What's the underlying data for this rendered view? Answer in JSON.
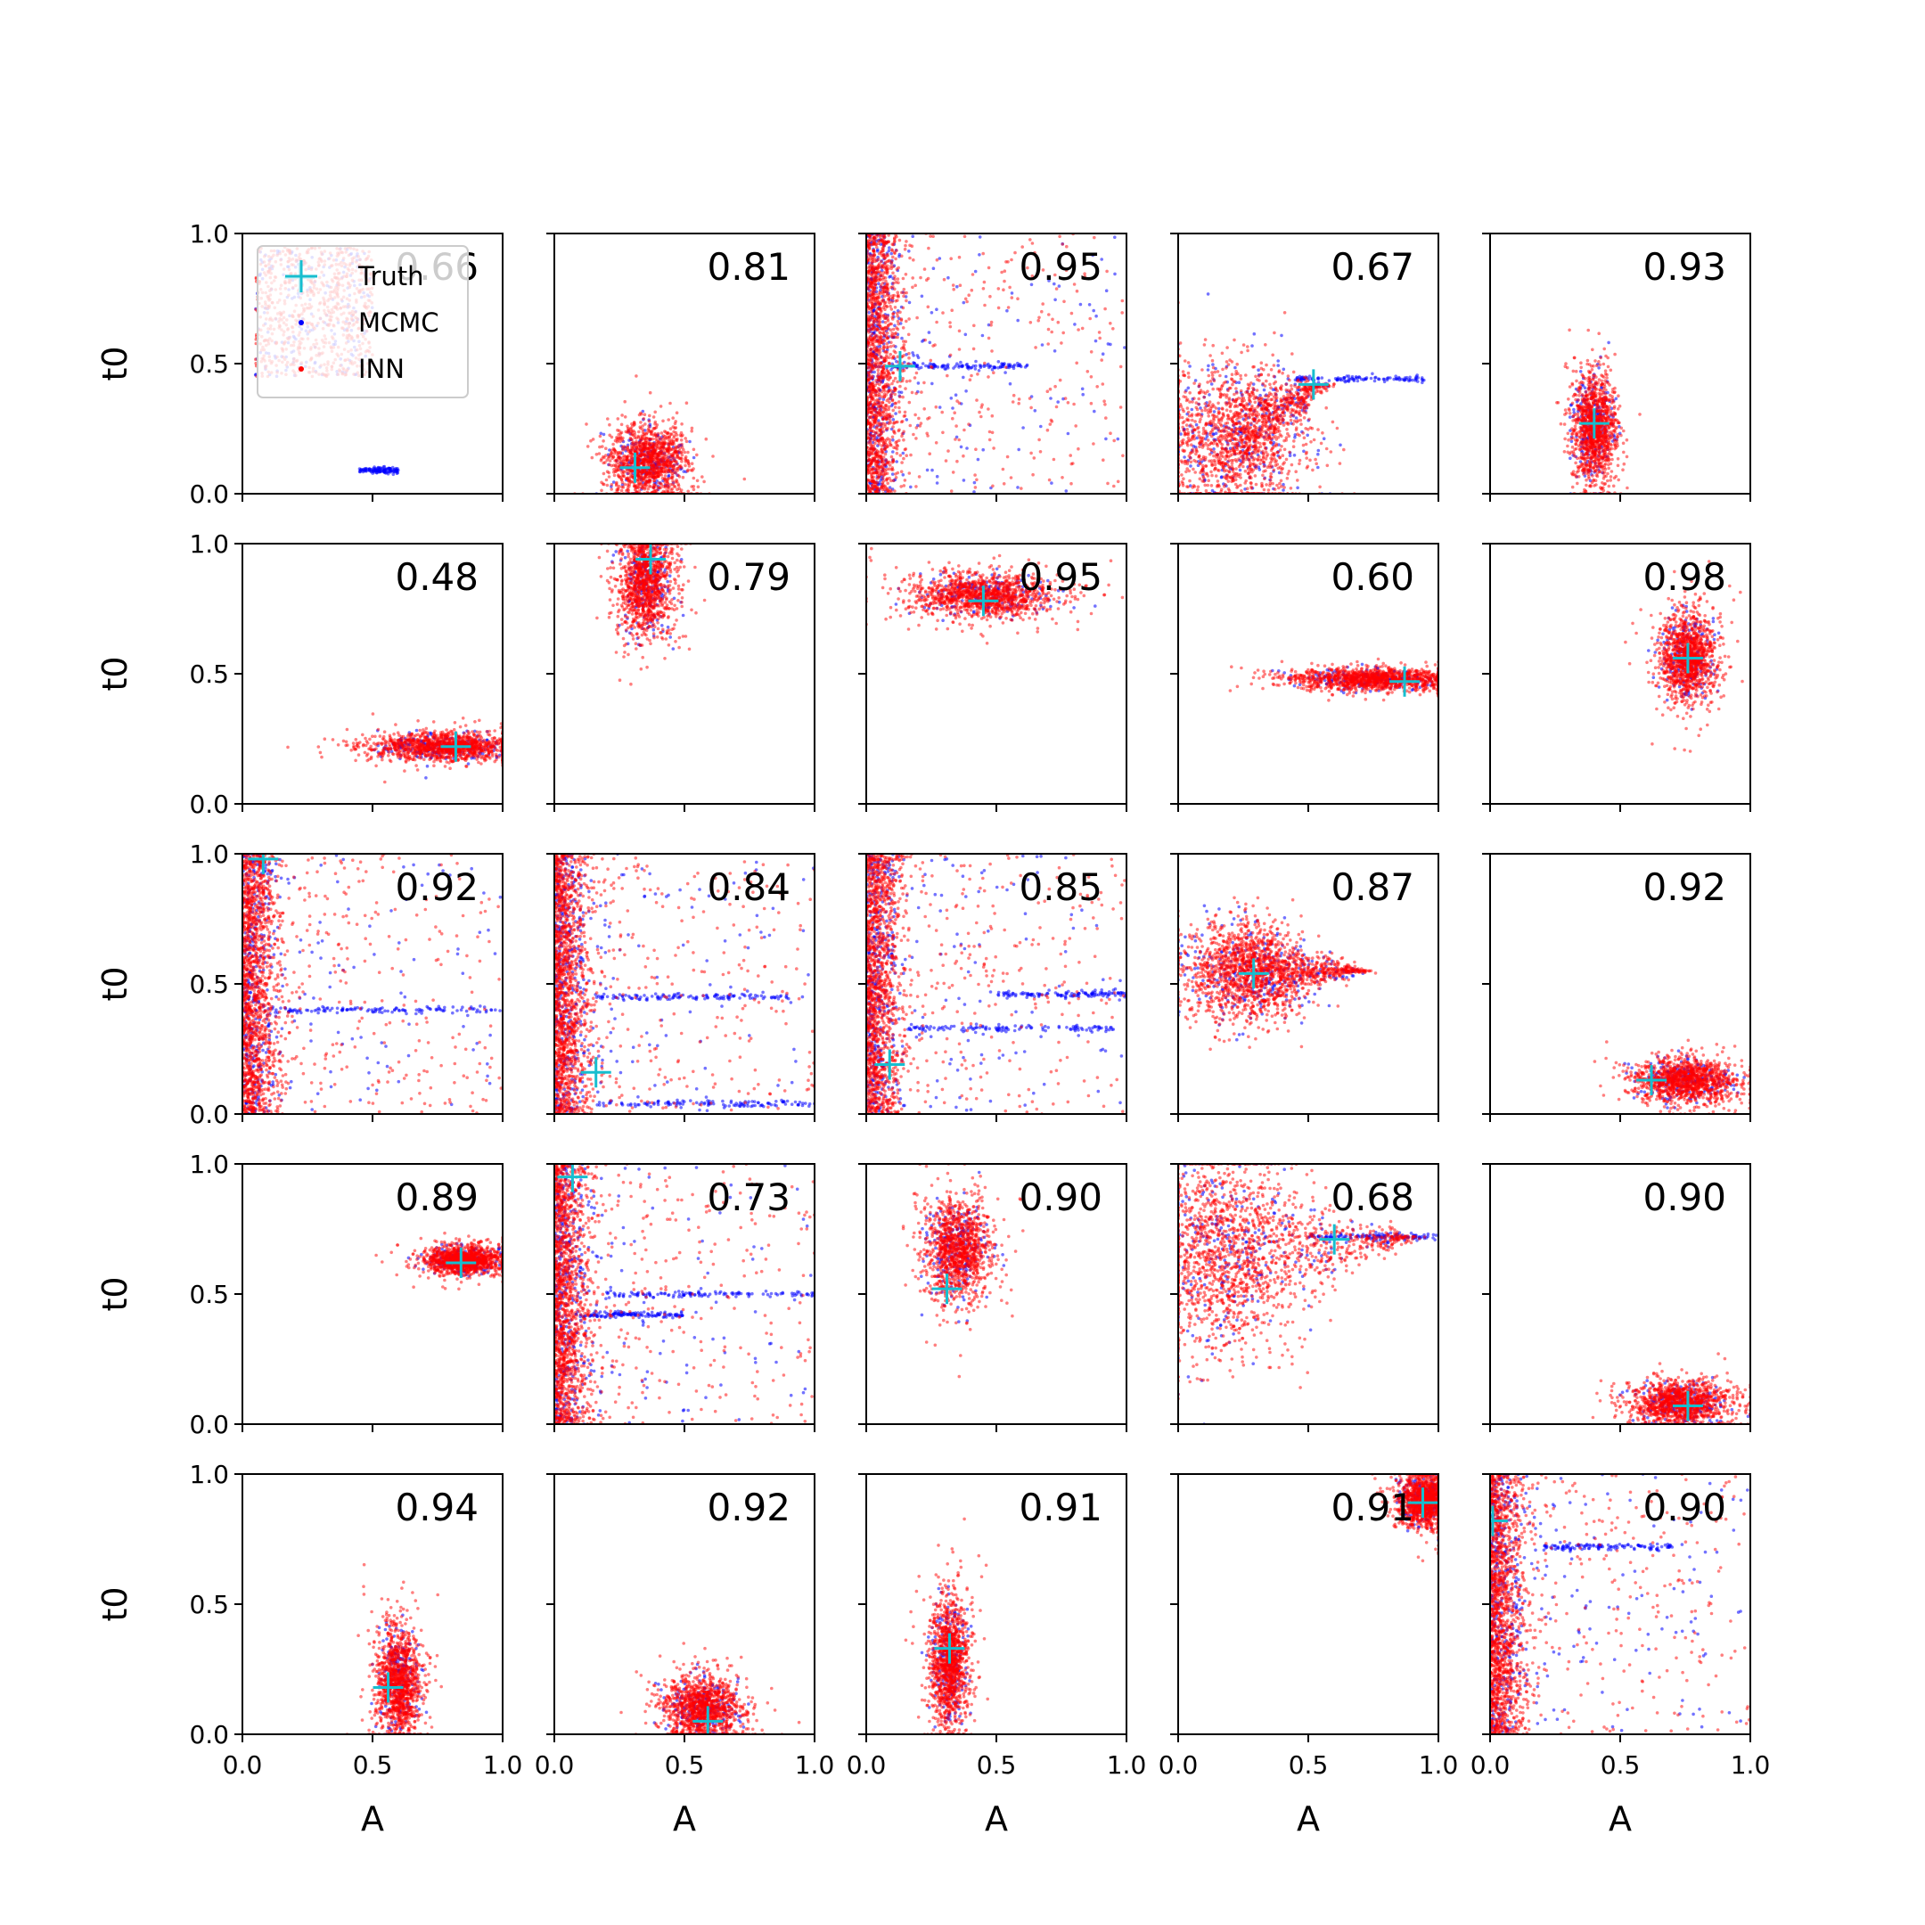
{
  "chart_data": {
    "type": "scatter",
    "grid": false,
    "layout": "5x5 small multiples",
    "legend_placement": "top-left",
    "xlabel": "A",
    "ylabel": "t0",
    "xlim": [
      0,
      1
    ],
    "ylim": [
      0,
      1
    ],
    "x_ticks": [
      0.0,
      0.5,
      1.0
    ],
    "y_ticks": [
      0.0,
      0.5,
      1.0
    ],
    "x_tick_labels": [
      "0.0",
      "0.5",
      "1.0"
    ],
    "y_tick_labels": [
      "0.0",
      "0.5",
      "1.0"
    ],
    "series": [
      {
        "name": "Truth",
        "marker": "plus",
        "color": "#17becf"
      },
      {
        "name": "MCMC",
        "marker": "dot",
        "color": "#0000ff"
      },
      {
        "name": "INN",
        "marker": "dot",
        "color": "#ff0000"
      }
    ],
    "panels": [
      {
        "score": "0.66",
        "truth": [
          0.22,
          0.83
        ],
        "posterior": {
          "shape": "smear",
          "x": [
            0.05,
            0.5
          ],
          "y": [
            0.45,
            0.95
          ]
        },
        "mcmc_streaks": [
          {
            "y": 0.09,
            "x": [
              0.45,
              0.6
            ]
          }
        ]
      },
      {
        "score": "0.81",
        "truth": [
          0.31,
          0.1
        ],
        "posterior": {
          "shape": "blob",
          "center": [
            0.36,
            0.12
          ],
          "spread": [
            0.07,
            0.07
          ]
        }
      },
      {
        "score": "0.95",
        "truth": [
          0.13,
          0.49
        ],
        "posterior": {
          "shape": "wall",
          "x": [
            0.0,
            0.1
          ]
        },
        "mcmc_streaks": [
          {
            "y": 0.49,
            "x": [
              0.1,
              0.62
            ]
          }
        ]
      },
      {
        "score": "0.67",
        "truth": [
          0.52,
          0.42
        ],
        "posterior": {
          "shape": "wedge",
          "center": [
            0.2,
            0.2
          ],
          "spread": [
            0.15,
            0.15
          ],
          "tip": [
            0.55,
            0.42
          ]
        },
        "mcmc_streaks": [
          {
            "y": 0.44,
            "x": [
              0.45,
              0.95
            ]
          }
        ]
      },
      {
        "score": "0.93",
        "truth": [
          0.4,
          0.27
        ],
        "posterior": {
          "shape": "blob",
          "center": [
            0.4,
            0.25
          ],
          "spread": [
            0.04,
            0.1
          ]
        }
      },
      {
        "score": "0.48",
        "truth": [
          0.82,
          0.22
        ],
        "posterior": {
          "shape": "blob",
          "center": [
            0.78,
            0.22
          ],
          "spread": [
            0.13,
            0.025
          ]
        }
      },
      {
        "score": "0.79",
        "truth": [
          0.37,
          0.94
        ],
        "posterior": {
          "shape": "blob",
          "center": [
            0.35,
            0.85
          ],
          "spread": [
            0.05,
            0.1
          ]
        }
      },
      {
        "score": "0.95",
        "truth": [
          0.45,
          0.78
        ],
        "posterior": {
          "shape": "blob",
          "center": [
            0.45,
            0.8
          ],
          "spread": [
            0.13,
            0.04
          ]
        }
      },
      {
        "score": "0.60",
        "truth": [
          0.87,
          0.47
        ],
        "posterior": {
          "shape": "blob",
          "center": [
            0.75,
            0.48
          ],
          "spread": [
            0.15,
            0.02
          ]
        }
      },
      {
        "score": "0.98",
        "truth": [
          0.76,
          0.56
        ],
        "posterior": {
          "shape": "blob",
          "center": [
            0.76,
            0.56
          ],
          "spread": [
            0.05,
            0.08
          ]
        }
      },
      {
        "score": "0.92",
        "truth": [
          0.08,
          0.98
        ],
        "posterior": {
          "shape": "wall",
          "x": [
            0.0,
            0.1
          ]
        },
        "mcmc_streaks": [
          {
            "y": 0.4,
            "x": [
              0.1,
              1.0
            ]
          }
        ]
      },
      {
        "score": "0.84",
        "truth": [
          0.16,
          0.16
        ],
        "posterior": {
          "shape": "wall",
          "x": [
            0.0,
            0.1
          ]
        },
        "mcmc_streaks": [
          {
            "y": 0.45,
            "x": [
              0.15,
              0.9
            ]
          },
          {
            "y": 0.04,
            "x": [
              0.15,
              1.0
            ]
          }
        ]
      },
      {
        "score": "0.85",
        "truth": [
          0.09,
          0.19
        ],
        "posterior": {
          "shape": "wall",
          "x": [
            0.0,
            0.1
          ]
        },
        "mcmc_streaks": [
          {
            "y": 0.33,
            "x": [
              0.15,
              0.95
            ]
          },
          {
            "y": 0.46,
            "x": [
              0.5,
              1.0
            ]
          }
        ]
      },
      {
        "score": "0.87",
        "truth": [
          0.29,
          0.54
        ],
        "posterior": {
          "shape": "wedge",
          "center": [
            0.25,
            0.55
          ],
          "spread": [
            0.12,
            0.1
          ],
          "tip": [
            0.7,
            0.55
          ]
        }
      },
      {
        "score": "0.92",
        "truth": [
          0.62,
          0.13
        ],
        "posterior": {
          "shape": "blob",
          "center": [
            0.75,
            0.13
          ],
          "spread": [
            0.09,
            0.04
          ]
        }
      },
      {
        "score": "0.89",
        "truth": [
          0.84,
          0.62
        ],
        "posterior": {
          "shape": "blob",
          "center": [
            0.85,
            0.63
          ],
          "spread": [
            0.07,
            0.025
          ]
        }
      },
      {
        "score": "0.73",
        "truth": [
          0.07,
          0.95
        ],
        "posterior": {
          "shape": "wall",
          "x": [
            0.0,
            0.1
          ]
        },
        "mcmc_streaks": [
          {
            "y": 0.5,
            "x": [
              0.2,
              1.0
            ]
          },
          {
            "y": 0.42,
            "x": [
              0.1,
              0.5
            ]
          }
        ]
      },
      {
        "score": "0.90",
        "truth": [
          0.31,
          0.52
        ],
        "posterior": {
          "shape": "blob",
          "center": [
            0.35,
            0.67
          ],
          "spread": [
            0.06,
            0.09
          ]
        }
      },
      {
        "score": "0.68",
        "truth": [
          0.6,
          0.71
        ],
        "posterior": {
          "shape": "wedge",
          "center": [
            0.15,
            0.65
          ],
          "spread": [
            0.15,
            0.2
          ],
          "tip": [
            0.9,
            0.72
          ]
        },
        "mcmc_streaks": [
          {
            "y": 0.72,
            "x": [
              0.5,
              1.0
            ]
          }
        ]
      },
      {
        "score": "0.90",
        "truth": [
          0.76,
          0.07
        ],
        "posterior": {
          "shape": "blob",
          "center": [
            0.73,
            0.08
          ],
          "spread": [
            0.09,
            0.04
          ]
        }
      },
      {
        "score": "0.94",
        "truth": [
          0.56,
          0.18
        ],
        "posterior": {
          "shape": "blob",
          "center": [
            0.6,
            0.2
          ],
          "spread": [
            0.04,
            0.1
          ]
        }
      },
      {
        "score": "0.92",
        "truth": [
          0.59,
          0.05
        ],
        "posterior": {
          "shape": "blob",
          "center": [
            0.57,
            0.1
          ],
          "spread": [
            0.07,
            0.06
          ]
        }
      },
      {
        "score": "0.91",
        "truth": [
          0.32,
          0.33
        ],
        "posterior": {
          "shape": "blob",
          "center": [
            0.32,
            0.27
          ],
          "spread": [
            0.035,
            0.12
          ]
        }
      },
      {
        "score": "0.91",
        "truth": [
          0.94,
          0.89
        ],
        "posterior": {
          "shape": "blob",
          "center": [
            0.95,
            0.9
          ],
          "spread": [
            0.05,
            0.05
          ]
        }
      },
      {
        "score": "0.90",
        "truth": [
          0.01,
          0.82
        ],
        "posterior": {
          "shape": "wall",
          "x": [
            0.0,
            0.1
          ]
        },
        "mcmc_streaks": [
          {
            "y": 0.72,
            "x": [
              0.2,
              0.7
            ]
          }
        ]
      }
    ]
  }
}
